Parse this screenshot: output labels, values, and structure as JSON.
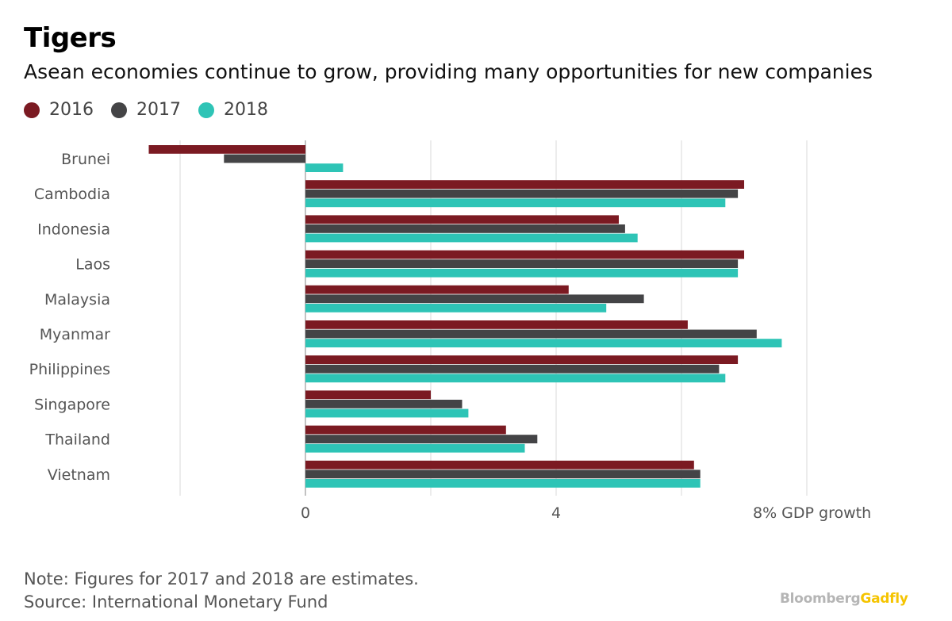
{
  "header": {
    "title": "Tigers",
    "subtitle": "Asean economies continue to grow, providing many opportunities for new companies"
  },
  "footer": {
    "note": "Note: Figures for 2017 and 2018 are estimates.",
    "source": "Source: International Monetary Fund",
    "brand_part1": "Bloomberg",
    "brand_part2": "Gadfly"
  },
  "colors": {
    "2016": "#7b1a22",
    "2017": "#444446",
    "2018": "#2ec4b6",
    "grid": "#e6e6e6",
    "axis": "#999999"
  },
  "chart_data": {
    "type": "bar",
    "orientation": "horizontal",
    "categories": [
      "Brunei",
      "Cambodia",
      "Indonesia",
      "Laos",
      "Malaysia",
      "Myanmar",
      "Philippines",
      "Singapore",
      "Thailand",
      "Vietnam"
    ],
    "series": [
      {
        "name": "2016",
        "values": [
          -2.5,
          7.0,
          5.0,
          7.0,
          4.2,
          6.1,
          6.9,
          2.0,
          3.2,
          6.2
        ]
      },
      {
        "name": "2017",
        "values": [
          -1.3,
          6.9,
          5.1,
          6.9,
          5.4,
          7.2,
          6.6,
          2.5,
          3.7,
          6.3
        ]
      },
      {
        "name": "2018",
        "values": [
          0.6,
          6.7,
          5.3,
          6.9,
          4.8,
          7.6,
          6.7,
          2.6,
          3.5,
          6.3
        ]
      }
    ],
    "xlim": [
      -2.8,
      8.9
    ],
    "xticks": [
      0,
      4,
      8
    ],
    "xtick_labels": [
      "0",
      "4",
      "8% GDP growth"
    ],
    "gridlines": [
      -2,
      0,
      2,
      4,
      6,
      8
    ],
    "grid": true,
    "legend_position": "top-left"
  }
}
